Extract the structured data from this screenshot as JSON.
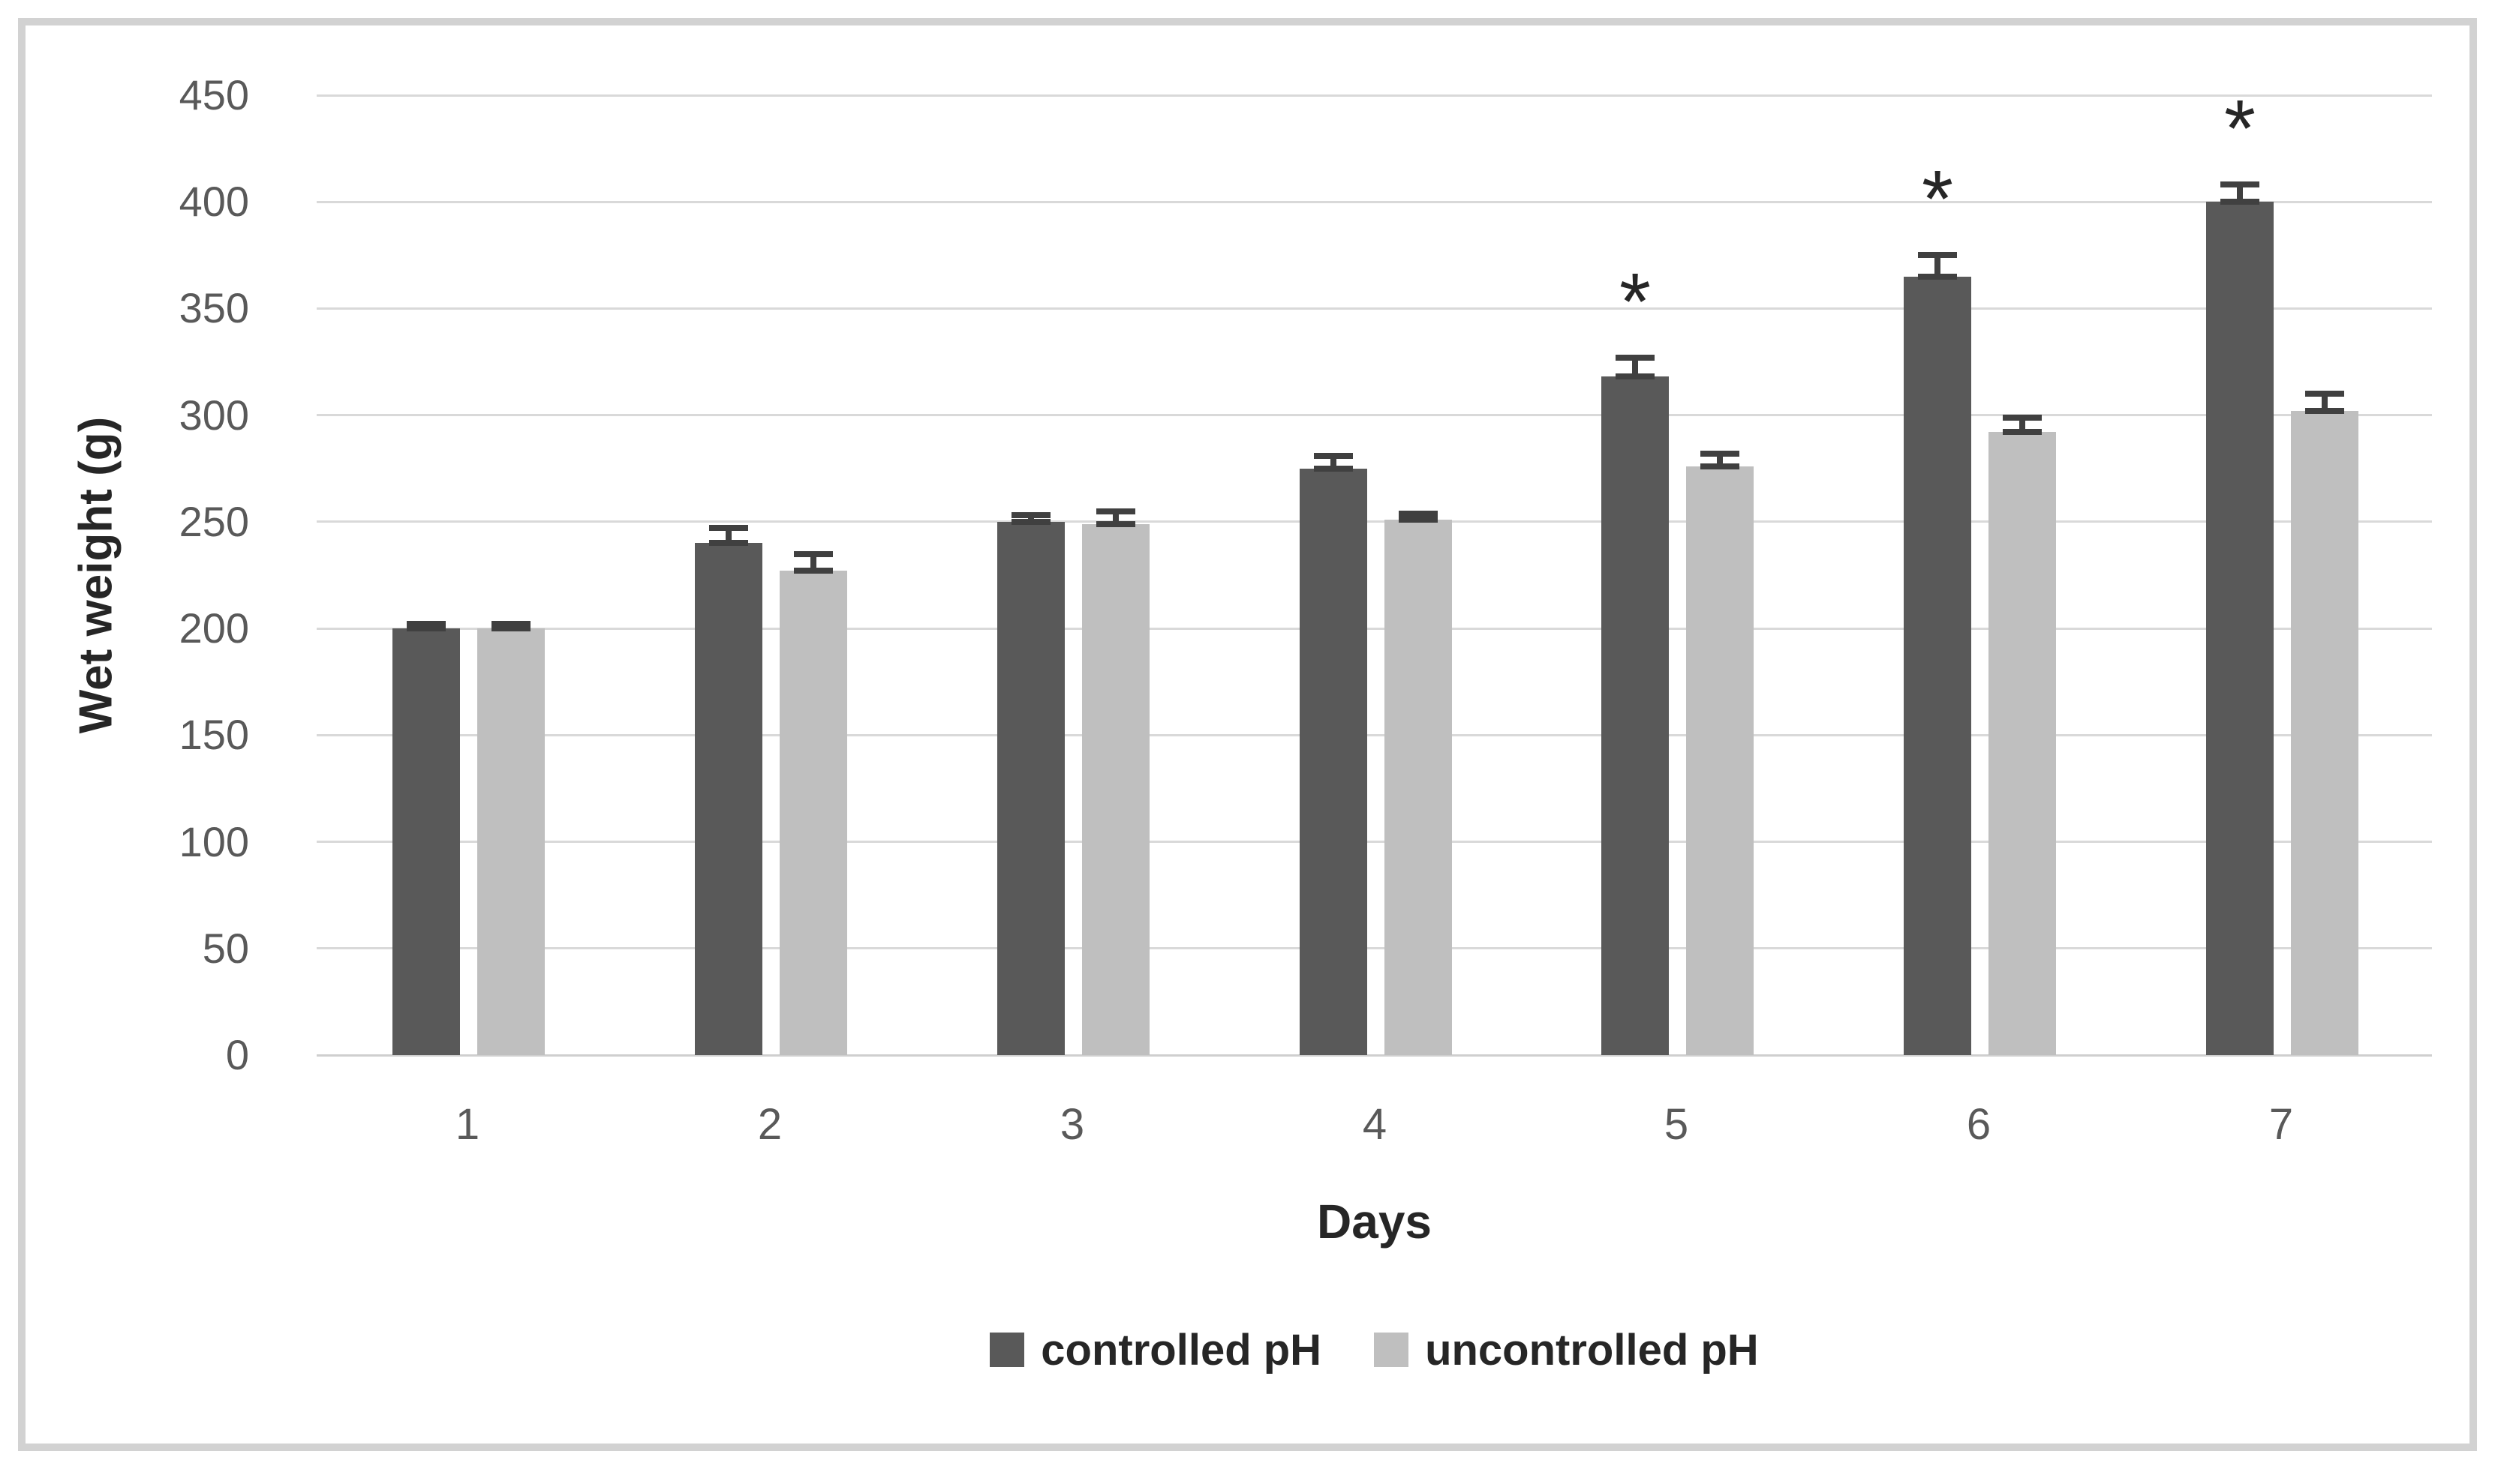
{
  "chart_data": {
    "type": "bar",
    "title": "",
    "xlabel": "Days",
    "ylabel": "Wet weight (g)",
    "categories": [
      "1",
      "2",
      "3",
      "4",
      "5",
      "6",
      "7"
    ],
    "series": [
      {
        "name": "controlled pH",
        "color": "#595959",
        "values": [
          200,
          240,
          250,
          275,
          318,
          365,
          400
        ],
        "errors": [
          2,
          7,
          3,
          6,
          9,
          10,
          8
        ],
        "significant": [
          false,
          false,
          false,
          false,
          true,
          true,
          true
        ]
      },
      {
        "name": "uncontrolled pH",
        "color": "#bfbfbf",
        "values": [
          200,
          227,
          249,
          251,
          276,
          292,
          302
        ],
        "errors": [
          2,
          8,
          6,
          3,
          6,
          7,
          8
        ],
        "significant": [
          false,
          false,
          false,
          false,
          false,
          false,
          false
        ]
      }
    ],
    "ylim": [
      0,
      450
    ],
    "yticks": [
      0,
      50,
      100,
      150,
      200,
      250,
      300,
      350,
      400,
      450
    ],
    "grid": true,
    "legend_position": "bottom",
    "significance_marker": "*",
    "colors": {
      "gridline": "#d9d9d9",
      "axis_line": "#cfcfcf",
      "tick_label": "#595959",
      "axis_title": "#262626",
      "error_bar": "#404040",
      "frame_border": "#d2d2d2",
      "background": "#ffffff"
    }
  }
}
